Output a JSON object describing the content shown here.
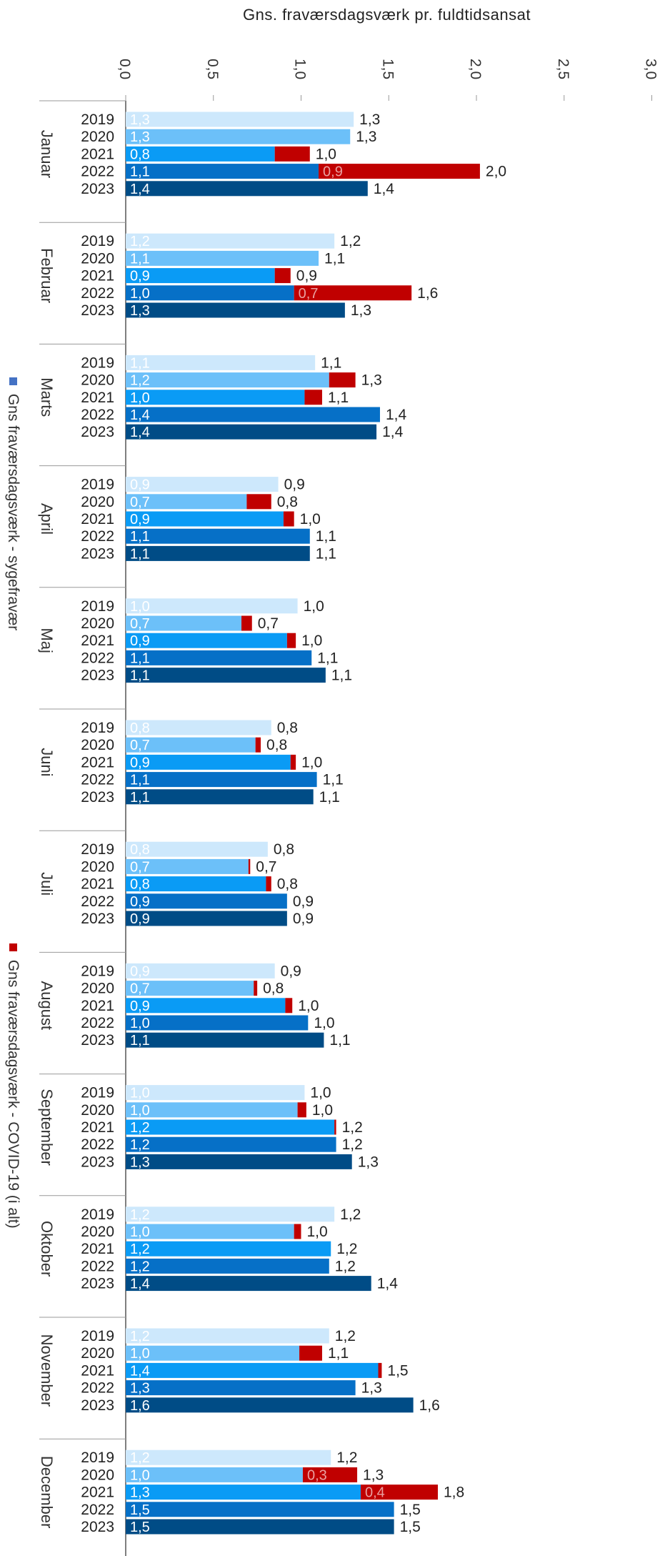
{
  "chart_data": {
    "type": "bar",
    "orientation": "horizontal",
    "stacked": true,
    "xlabel": "Gns. fraværsdagsværk pr. fuldtidsansat",
    "xlim": [
      0,
      3.0
    ],
    "xticks": [
      "0,0",
      "0,5",
      "1,0",
      "1,5",
      "2,0",
      "2,5",
      "3,0"
    ],
    "legend": [
      {
        "name": "Gns fraværsdagsværk - sygefravær",
        "color": "#4472C4"
      },
      {
        "name": "Gns fraværsdagsværk - COVID-19 (i alt)",
        "color": "#C00000"
      }
    ],
    "year_colors": {
      "2019": "#CDE8FC",
      "2020": "#6CC0F9",
      "2021": "#0A9BF5",
      "2022": "#0670C7",
      "2023": "#004C86"
    },
    "covid_color": "#C00000",
    "months": [
      {
        "name": "Januar",
        "rows": [
          {
            "year": "2019",
            "sick": 1.3,
            "covid": 0,
            "sick_label": "1,3",
            "covid_label": "",
            "total_label": "1,3"
          },
          {
            "year": "2020",
            "sick": 1.28,
            "covid": 0,
            "sick_label": "1,3",
            "covid_label": "",
            "total_label": "1,3"
          },
          {
            "year": "2021",
            "sick": 0.85,
            "covid": 0.2,
            "sick_label": "0,8",
            "covid_label": "",
            "total_label": "1,0"
          },
          {
            "year": "2022",
            "sick": 1.1,
            "covid": 0.92,
            "sick_label": "1,1",
            "covid_label": "0,9",
            "total_label": "2,0"
          },
          {
            "year": "2023",
            "sick": 1.38,
            "covid": 0,
            "sick_label": "1,4",
            "covid_label": "",
            "total_label": "1,4"
          }
        ]
      },
      {
        "name": "Februar",
        "rows": [
          {
            "year": "2019",
            "sick": 1.19,
            "covid": 0,
            "sick_label": "1,2",
            "covid_label": "",
            "total_label": "1,2"
          },
          {
            "year": "2020",
            "sick": 1.1,
            "covid": 0,
            "sick_label": "1,1",
            "covid_label": "",
            "total_label": "1,1"
          },
          {
            "year": "2021",
            "sick": 0.85,
            "covid": 0.09,
            "sick_label": "0,9",
            "covid_label": "",
            "total_label": "0,9"
          },
          {
            "year": "2022",
            "sick": 0.96,
            "covid": 0.67,
            "sick_label": "1,0",
            "covid_label": "0,7",
            "total_label": "1,6"
          },
          {
            "year": "2023",
            "sick": 1.25,
            "covid": 0,
            "sick_label": "1,3",
            "covid_label": "",
            "total_label": "1,3"
          }
        ]
      },
      {
        "name": "Marts",
        "rows": [
          {
            "year": "2019",
            "sick": 1.08,
            "covid": 0,
            "sick_label": "1,1",
            "covid_label": "",
            "total_label": "1,1"
          },
          {
            "year": "2020",
            "sick": 1.16,
            "covid": 0.15,
            "sick_label": "1,2",
            "covid_label": "",
            "total_label": "1,3"
          },
          {
            "year": "2021",
            "sick": 1.02,
            "covid": 0.1,
            "sick_label": "1,0",
            "covid_label": "",
            "total_label": "1,1"
          },
          {
            "year": "2022",
            "sick": 1.45,
            "covid": 0,
            "sick_label": "1,4",
            "covid_label": "",
            "total_label": "1,4"
          },
          {
            "year": "2023",
            "sick": 1.43,
            "covid": 0,
            "sick_label": "1,4",
            "covid_label": "",
            "total_label": "1,4"
          }
        ]
      },
      {
        "name": "April",
        "rows": [
          {
            "year": "2019",
            "sick": 0.87,
            "covid": 0,
            "sick_label": "0,9",
            "covid_label": "",
            "total_label": "0,9"
          },
          {
            "year": "2020",
            "sick": 0.69,
            "covid": 0.14,
            "sick_label": "0,7",
            "covid_label": "",
            "total_label": "0,8"
          },
          {
            "year": "2021",
            "sick": 0.9,
            "covid": 0.06,
            "sick_label": "0,9",
            "covid_label": "",
            "total_label": "1,0"
          },
          {
            "year": "2022",
            "sick": 1.05,
            "covid": 0,
            "sick_label": "1,1",
            "covid_label": "",
            "total_label": "1,1"
          },
          {
            "year": "2023",
            "sick": 1.05,
            "covid": 0,
            "sick_label": "1,1",
            "covid_label": "",
            "total_label": "1,1"
          }
        ]
      },
      {
        "name": "Maj",
        "rows": [
          {
            "year": "2019",
            "sick": 0.98,
            "covid": 0,
            "sick_label": "1,0",
            "covid_label": "",
            "total_label": "1,0"
          },
          {
            "year": "2020",
            "sick": 0.66,
            "covid": 0.06,
            "sick_label": "0,7",
            "covid_label": "",
            "total_label": "0,7"
          },
          {
            "year": "2021",
            "sick": 0.92,
            "covid": 0.05,
            "sick_label": "0,9",
            "covid_label": "",
            "total_label": "1,0"
          },
          {
            "year": "2022",
            "sick": 1.06,
            "covid": 0,
            "sick_label": "1,1",
            "covid_label": "",
            "total_label": "1,1"
          },
          {
            "year": "2023",
            "sick": 1.14,
            "covid": 0,
            "sick_label": "1,1",
            "covid_label": "",
            "total_label": "1,1"
          }
        ]
      },
      {
        "name": "Juni",
        "rows": [
          {
            "year": "2019",
            "sick": 0.83,
            "covid": 0,
            "sick_label": "0,8",
            "covid_label": "",
            "total_label": "0,8"
          },
          {
            "year": "2020",
            "sick": 0.74,
            "covid": 0.03,
            "sick_label": "0,7",
            "covid_label": "",
            "total_label": "0,8"
          },
          {
            "year": "2021",
            "sick": 0.94,
            "covid": 0.03,
            "sick_label": "0,9",
            "covid_label": "",
            "total_label": "1,0"
          },
          {
            "year": "2022",
            "sick": 1.09,
            "covid": 0,
            "sick_label": "1,1",
            "covid_label": "",
            "total_label": "1,1"
          },
          {
            "year": "2023",
            "sick": 1.07,
            "covid": 0,
            "sick_label": "1,1",
            "covid_label": "",
            "total_label": "1,1"
          }
        ]
      },
      {
        "name": "Juli",
        "rows": [
          {
            "year": "2019",
            "sick": 0.81,
            "covid": 0,
            "sick_label": "0,8",
            "covid_label": "",
            "total_label": "0,8"
          },
          {
            "year": "2020",
            "sick": 0.7,
            "covid": 0.01,
            "sick_label": "0,7",
            "covid_label": "",
            "total_label": "0,7"
          },
          {
            "year": "2021",
            "sick": 0.8,
            "covid": 0.03,
            "sick_label": "0,8",
            "covid_label": "",
            "total_label": "0,8"
          },
          {
            "year": "2022",
            "sick": 0.92,
            "covid": 0,
            "sick_label": "0,9",
            "covid_label": "",
            "total_label": "0,9"
          },
          {
            "year": "2023",
            "sick": 0.92,
            "covid": 0,
            "sick_label": "0,9",
            "covid_label": "",
            "total_label": "0,9"
          }
        ]
      },
      {
        "name": "August",
        "rows": [
          {
            "year": "2019",
            "sick": 0.85,
            "covid": 0,
            "sick_label": "0,9",
            "covid_label": "",
            "total_label": "0,9"
          },
          {
            "year": "2020",
            "sick": 0.73,
            "covid": 0.02,
            "sick_label": "0,7",
            "covid_label": "",
            "total_label": "0,8"
          },
          {
            "year": "2021",
            "sick": 0.91,
            "covid": 0.04,
            "sick_label": "0,9",
            "covid_label": "",
            "total_label": "1,0"
          },
          {
            "year": "2022",
            "sick": 1.04,
            "covid": 0,
            "sick_label": "1,0",
            "covid_label": "",
            "total_label": "1,0"
          },
          {
            "year": "2023",
            "sick": 1.13,
            "covid": 0,
            "sick_label": "1,1",
            "covid_label": "",
            "total_label": "1,1"
          }
        ]
      },
      {
        "name": "September",
        "rows": [
          {
            "year": "2019",
            "sick": 1.02,
            "covid": 0,
            "sick_label": "1,0",
            "covid_label": "",
            "total_label": "1,0"
          },
          {
            "year": "2020",
            "sick": 0.98,
            "covid": 0.05,
            "sick_label": "1,0",
            "covid_label": "",
            "total_label": "1,0"
          },
          {
            "year": "2021",
            "sick": 1.19,
            "covid": 0.01,
            "sick_label": "1,2",
            "covid_label": "",
            "total_label": "1,2"
          },
          {
            "year": "2022",
            "sick": 1.2,
            "covid": 0,
            "sick_label": "1,2",
            "covid_label": "",
            "total_label": "1,2"
          },
          {
            "year": "2023",
            "sick": 1.29,
            "covid": 0,
            "sick_label": "1,3",
            "covid_label": "",
            "total_label": "1,3"
          }
        ]
      },
      {
        "name": "Oktober",
        "rows": [
          {
            "year": "2019",
            "sick": 1.19,
            "covid": 0,
            "sick_label": "1,2",
            "covid_label": "",
            "total_label": "1,2"
          },
          {
            "year": "2020",
            "sick": 0.96,
            "covid": 0.04,
            "sick_label": "1,0",
            "covid_label": "",
            "total_label": "1,0"
          },
          {
            "year": "2021",
            "sick": 1.17,
            "covid": 0,
            "sick_label": "1,2",
            "covid_label": "",
            "total_label": "1,2"
          },
          {
            "year": "2022",
            "sick": 1.16,
            "covid": 0,
            "sick_label": "1,2",
            "covid_label": "",
            "total_label": "1,2"
          },
          {
            "year": "2023",
            "sick": 1.4,
            "covid": 0,
            "sick_label": "1,4",
            "covid_label": "",
            "total_label": "1,4"
          }
        ]
      },
      {
        "name": "November",
        "rows": [
          {
            "year": "2019",
            "sick": 1.16,
            "covid": 0,
            "sick_label": "1,2",
            "covid_label": "",
            "total_label": "1,2"
          },
          {
            "year": "2020",
            "sick": 0.99,
            "covid": 0.13,
            "sick_label": "1,0",
            "covid_label": "",
            "total_label": "1,1"
          },
          {
            "year": "2021",
            "sick": 1.44,
            "covid": 0.02,
            "sick_label": "1,4",
            "covid_label": "",
            "total_label": "1,5"
          },
          {
            "year": "2022",
            "sick": 1.31,
            "covid": 0,
            "sick_label": "1,3",
            "covid_label": "",
            "total_label": "1,3"
          },
          {
            "year": "2023",
            "sick": 1.64,
            "covid": 0,
            "sick_label": "1,6",
            "covid_label": "",
            "total_label": "1,6"
          }
        ]
      },
      {
        "name": "December",
        "rows": [
          {
            "year": "2019",
            "sick": 1.17,
            "covid": 0,
            "sick_label": "1,2",
            "covid_label": "",
            "total_label": "1,2"
          },
          {
            "year": "2020",
            "sick": 1.01,
            "covid": 0.31,
            "sick_label": "1,0",
            "covid_label": "0,3",
            "total_label": "1,3"
          },
          {
            "year": "2021",
            "sick": 1.34,
            "covid": 0.44,
            "sick_label": "1,3",
            "covid_label": "0,4",
            "total_label": "1,8"
          },
          {
            "year": "2022",
            "sick": 1.53,
            "covid": 0,
            "sick_label": "1,5",
            "covid_label": "",
            "total_label": "1,5"
          },
          {
            "year": "2023",
            "sick": 1.53,
            "covid": 0,
            "sick_label": "1,5",
            "covid_label": "",
            "total_label": "1,5"
          }
        ]
      }
    ]
  }
}
